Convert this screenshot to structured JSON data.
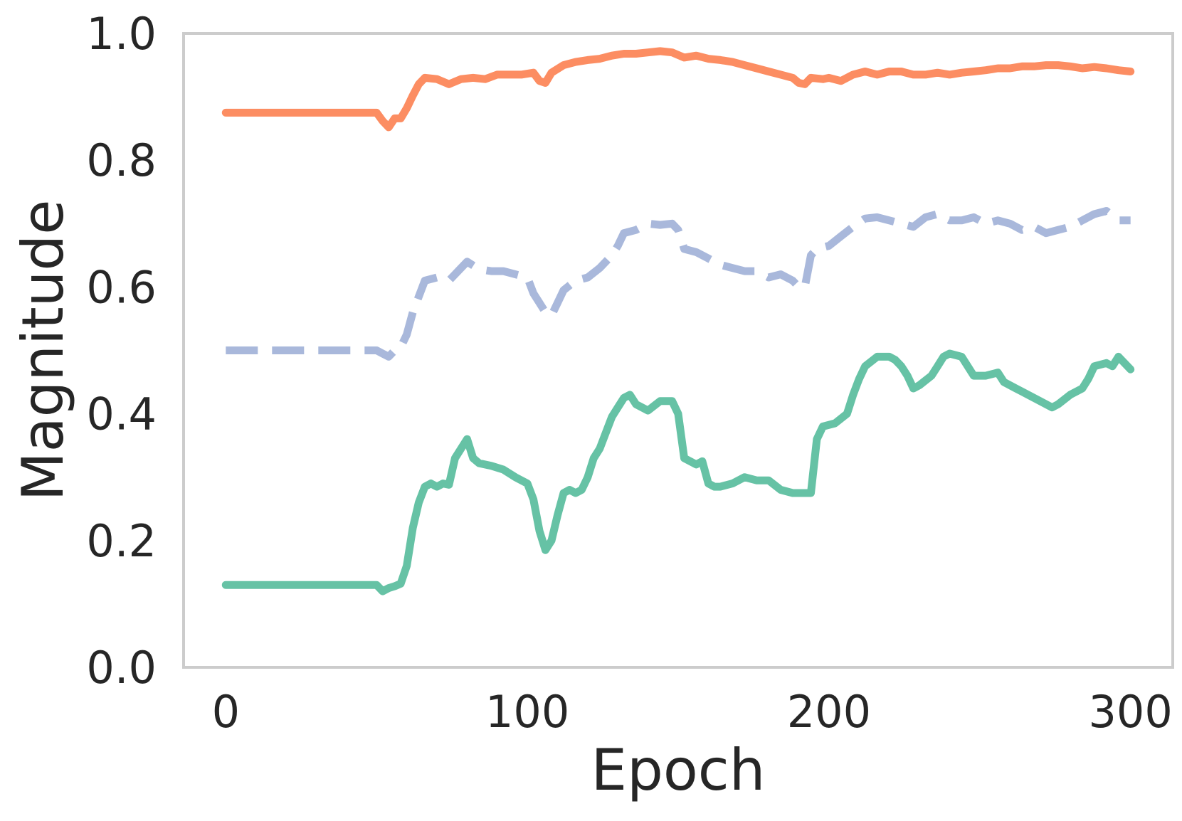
{
  "chart_data": {
    "type": "line",
    "title": "",
    "xlabel": "Epoch",
    "ylabel": "Magnitude",
    "xlim": [
      -14,
      314
    ],
    "ylim": [
      0.0,
      1.0
    ],
    "xticks": [
      0,
      100,
      200,
      300
    ],
    "xtick_labels": [
      "0",
      "100",
      "200",
      "300"
    ],
    "yticks": [
      0.0,
      0.2,
      0.4,
      0.6,
      0.8,
      1.0
    ],
    "ytick_labels": [
      "0.0",
      "0.2",
      "0.4",
      "0.6",
      "0.8",
      "1.0"
    ],
    "grid": false,
    "legend": "none",
    "series": [
      {
        "color": "#fc8d62",
        "dash": "solid",
        "points": [
          [
            0,
            0.875
          ],
          [
            50,
            0.875
          ],
          [
            52,
            0.862
          ],
          [
            54,
            0.852
          ],
          [
            56,
            0.866
          ],
          [
            58,
            0.866
          ],
          [
            60,
            0.882
          ],
          [
            62,
            0.902
          ],
          [
            64,
            0.92
          ],
          [
            66,
            0.93
          ],
          [
            70,
            0.928
          ],
          [
            74,
            0.92
          ],
          [
            78,
            0.928
          ],
          [
            82,
            0.93
          ],
          [
            86,
            0.928
          ],
          [
            90,
            0.935
          ],
          [
            94,
            0.935
          ],
          [
            98,
            0.935
          ],
          [
            102,
            0.938
          ],
          [
            104,
            0.925
          ],
          [
            106,
            0.922
          ],
          [
            108,
            0.938
          ],
          [
            112,
            0.95
          ],
          [
            116,
            0.955
          ],
          [
            120,
            0.958
          ],
          [
            124,
            0.96
          ],
          [
            128,
            0.965
          ],
          [
            132,
            0.968
          ],
          [
            136,
            0.968
          ],
          [
            140,
            0.97
          ],
          [
            144,
            0.972
          ],
          [
            148,
            0.97
          ],
          [
            152,
            0.962
          ],
          [
            156,
            0.965
          ],
          [
            160,
            0.96
          ],
          [
            164,
            0.958
          ],
          [
            168,
            0.955
          ],
          [
            172,
            0.95
          ],
          [
            176,
            0.945
          ],
          [
            180,
            0.94
          ],
          [
            184,
            0.935
          ],
          [
            188,
            0.93
          ],
          [
            190,
            0.922
          ],
          [
            192,
            0.92
          ],
          [
            194,
            0.93
          ],
          [
            198,
            0.928
          ],
          [
            200,
            0.93
          ],
          [
            204,
            0.925
          ],
          [
            208,
            0.935
          ],
          [
            212,
            0.94
          ],
          [
            216,
            0.935
          ],
          [
            220,
            0.94
          ],
          [
            224,
            0.94
          ],
          [
            228,
            0.935
          ],
          [
            232,
            0.935
          ],
          [
            236,
            0.938
          ],
          [
            240,
            0.935
          ],
          [
            244,
            0.938
          ],
          [
            248,
            0.94
          ],
          [
            252,
            0.942
          ],
          [
            256,
            0.945
          ],
          [
            260,
            0.945
          ],
          [
            264,
            0.948
          ],
          [
            268,
            0.948
          ],
          [
            272,
            0.95
          ],
          [
            276,
            0.95
          ],
          [
            280,
            0.948
          ],
          [
            284,
            0.945
          ],
          [
            288,
            0.947
          ],
          [
            292,
            0.945
          ],
          [
            296,
            0.942
          ],
          [
            300,
            0.94
          ]
        ]
      },
      {
        "color": "#a9b8db",
        "dash": "dashed",
        "points": [
          [
            0,
            0.5
          ],
          [
            50,
            0.5
          ],
          [
            52,
            0.495
          ],
          [
            54,
            0.49
          ],
          [
            56,
            0.5
          ],
          [
            58,
            0.505
          ],
          [
            60,
            0.525
          ],
          [
            62,
            0.56
          ],
          [
            64,
            0.585
          ],
          [
            66,
            0.61
          ],
          [
            70,
            0.615
          ],
          [
            74,
            0.61
          ],
          [
            78,
            0.63
          ],
          [
            80,
            0.64
          ],
          [
            84,
            0.628
          ],
          [
            88,
            0.625
          ],
          [
            92,
            0.625
          ],
          [
            96,
            0.62
          ],
          [
            100,
            0.615
          ],
          [
            102,
            0.59
          ],
          [
            104,
            0.575
          ],
          [
            106,
            0.56
          ],
          [
            108,
            0.555
          ],
          [
            110,
            0.575
          ],
          [
            112,
            0.595
          ],
          [
            116,
            0.61
          ],
          [
            120,
            0.615
          ],
          [
            124,
            0.63
          ],
          [
            128,
            0.65
          ],
          [
            130,
            0.665
          ],
          [
            132,
            0.685
          ],
          [
            136,
            0.69
          ],
          [
            140,
            0.7
          ],
          [
            144,
            0.698
          ],
          [
            148,
            0.7
          ],
          [
            150,
            0.69
          ],
          [
            152,
            0.66
          ],
          [
            156,
            0.655
          ],
          [
            160,
            0.645
          ],
          [
            164,
            0.635
          ],
          [
            168,
            0.63
          ],
          [
            172,
            0.625
          ],
          [
            176,
            0.625
          ],
          [
            180,
            0.615
          ],
          [
            184,
            0.62
          ],
          [
            188,
            0.61
          ],
          [
            190,
            0.6
          ],
          [
            192,
            0.6
          ],
          [
            194,
            0.65
          ],
          [
            196,
            0.66
          ],
          [
            200,
            0.665
          ],
          [
            204,
            0.68
          ],
          [
            208,
            0.695
          ],
          [
            212,
            0.708
          ],
          [
            216,
            0.71
          ],
          [
            220,
            0.705
          ],
          [
            224,
            0.7
          ],
          [
            228,
            0.695
          ],
          [
            232,
            0.71
          ],
          [
            236,
            0.715
          ],
          [
            240,
            0.705
          ],
          [
            244,
            0.705
          ],
          [
            248,
            0.71
          ],
          [
            252,
            0.7
          ],
          [
            256,
            0.705
          ],
          [
            260,
            0.7
          ],
          [
            264,
            0.69
          ],
          [
            268,
            0.695
          ],
          [
            272,
            0.685
          ],
          [
            276,
            0.69
          ],
          [
            280,
            0.695
          ],
          [
            284,
            0.705
          ],
          [
            288,
            0.715
          ],
          [
            292,
            0.72
          ],
          [
            296,
            0.705
          ],
          [
            300,
            0.705
          ]
        ]
      },
      {
        "color": "#66c2a5",
        "dash": "solid",
        "points": [
          [
            0,
            0.13
          ],
          [
            50,
            0.13
          ],
          [
            52,
            0.12
          ],
          [
            54,
            0.125
          ],
          [
            56,
            0.128
          ],
          [
            58,
            0.132
          ],
          [
            60,
            0.16
          ],
          [
            62,
            0.22
          ],
          [
            64,
            0.26
          ],
          [
            66,
            0.285
          ],
          [
            68,
            0.29
          ],
          [
            70,
            0.285
          ],
          [
            72,
            0.29
          ],
          [
            74,
            0.288
          ],
          [
            76,
            0.33
          ],
          [
            78,
            0.345
          ],
          [
            80,
            0.36
          ],
          [
            82,
            0.33
          ],
          [
            84,
            0.322
          ],
          [
            88,
            0.318
          ],
          [
            92,
            0.312
          ],
          [
            96,
            0.3
          ],
          [
            100,
            0.29
          ],
          [
            102,
            0.265
          ],
          [
            104,
            0.215
          ],
          [
            106,
            0.185
          ],
          [
            108,
            0.2
          ],
          [
            110,
            0.24
          ],
          [
            112,
            0.275
          ],
          [
            114,
            0.28
          ],
          [
            116,
            0.275
          ],
          [
            118,
            0.28
          ],
          [
            120,
            0.3
          ],
          [
            122,
            0.33
          ],
          [
            124,
            0.345
          ],
          [
            126,
            0.37
          ],
          [
            128,
            0.395
          ],
          [
            130,
            0.41
          ],
          [
            132,
            0.425
          ],
          [
            134,
            0.43
          ],
          [
            136,
            0.415
          ],
          [
            140,
            0.405
          ],
          [
            144,
            0.42
          ],
          [
            148,
            0.42
          ],
          [
            150,
            0.4
          ],
          [
            152,
            0.33
          ],
          [
            156,
            0.32
          ],
          [
            158,
            0.325
          ],
          [
            160,
            0.29
          ],
          [
            162,
            0.285
          ],
          [
            164,
            0.285
          ],
          [
            168,
            0.29
          ],
          [
            172,
            0.3
          ],
          [
            176,
            0.295
          ],
          [
            180,
            0.295
          ],
          [
            184,
            0.28
          ],
          [
            188,
            0.275
          ],
          [
            192,
            0.275
          ],
          [
            194,
            0.275
          ],
          [
            196,
            0.36
          ],
          [
            198,
            0.38
          ],
          [
            202,
            0.385
          ],
          [
            206,
            0.4
          ],
          [
            208,
            0.43
          ],
          [
            210,
            0.455
          ],
          [
            212,
            0.475
          ],
          [
            216,
            0.49
          ],
          [
            220,
            0.49
          ],
          [
            222,
            0.485
          ],
          [
            224,
            0.475
          ],
          [
            226,
            0.46
          ],
          [
            228,
            0.44
          ],
          [
            230,
            0.445
          ],
          [
            234,
            0.46
          ],
          [
            236,
            0.475
          ],
          [
            238,
            0.49
          ],
          [
            240,
            0.495
          ],
          [
            244,
            0.49
          ],
          [
            248,
            0.46
          ],
          [
            252,
            0.46
          ],
          [
            256,
            0.465
          ],
          [
            258,
            0.45
          ],
          [
            262,
            0.44
          ],
          [
            264,
            0.435
          ],
          [
            266,
            0.43
          ],
          [
            270,
            0.42
          ],
          [
            274,
            0.41
          ],
          [
            276,
            0.415
          ],
          [
            280,
            0.43
          ],
          [
            284,
            0.44
          ],
          [
            286,
            0.455
          ],
          [
            288,
            0.475
          ],
          [
            292,
            0.48
          ],
          [
            294,
            0.475
          ],
          [
            296,
            0.49
          ],
          [
            298,
            0.48
          ],
          [
            300,
            0.47
          ]
        ]
      }
    ]
  }
}
